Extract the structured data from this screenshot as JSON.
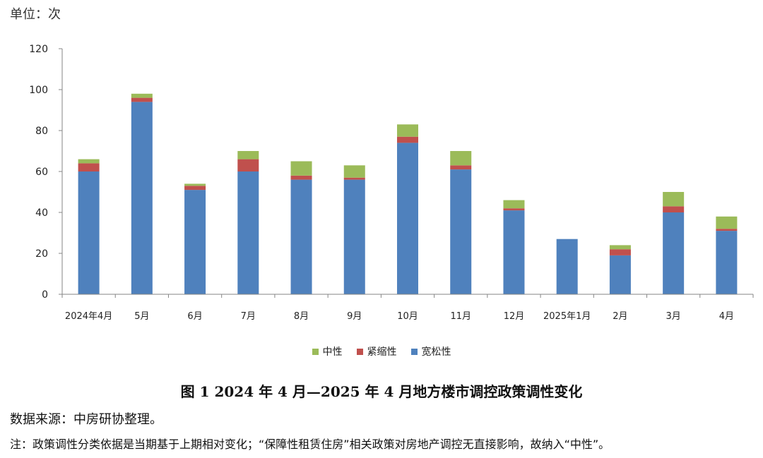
{
  "unit_label": "单位：次",
  "legend": [
    {
      "label": "中性",
      "color": "#9bbb59"
    },
    {
      "label": "紧缩性",
      "color": "#c0504d"
    },
    {
      "label": "宽松性",
      "color": "#4f81bd"
    }
  ],
  "caption": "图 1 2024 年 4 月—2025 年 4 月地方楼市调控政策调性变化",
  "source": "数据来源：中房研协整理。",
  "note": "注：政策调性分类依据是当期基于上期相对变化；“保障性租赁住房”相关政策对房地产调控无直接影响，故纳入“中性”。",
  "chart_data": {
    "type": "bar",
    "stacked": true,
    "categories": [
      "2024年4月",
      "5月",
      "6月",
      "7月",
      "8月",
      "9月",
      "10月",
      "11月",
      "12月",
      "2025年1月",
      "2月",
      "3月",
      "4月"
    ],
    "series": [
      {
        "name": "宽松性",
        "color": "#4f81bd",
        "values": [
          60,
          94,
          51,
          60,
          56,
          56,
          74,
          61,
          41,
          27,
          19,
          40,
          31
        ]
      },
      {
        "name": "紧缩性",
        "color": "#c0504d",
        "values": [
          4,
          2,
          2,
          6,
          2,
          1,
          3,
          2,
          1,
          0,
          3,
          3,
          1
        ]
      },
      {
        "name": "中性",
        "color": "#9bbb59",
        "values": [
          2,
          2,
          1,
          4,
          7,
          6,
          6,
          7,
          4,
          0,
          2,
          7,
          6
        ]
      }
    ],
    "ylim": [
      0,
      120
    ],
    "yticks": [
      0,
      20,
      40,
      60,
      80,
      100,
      120
    ],
    "grid": false,
    "legend_position": "bottom"
  }
}
